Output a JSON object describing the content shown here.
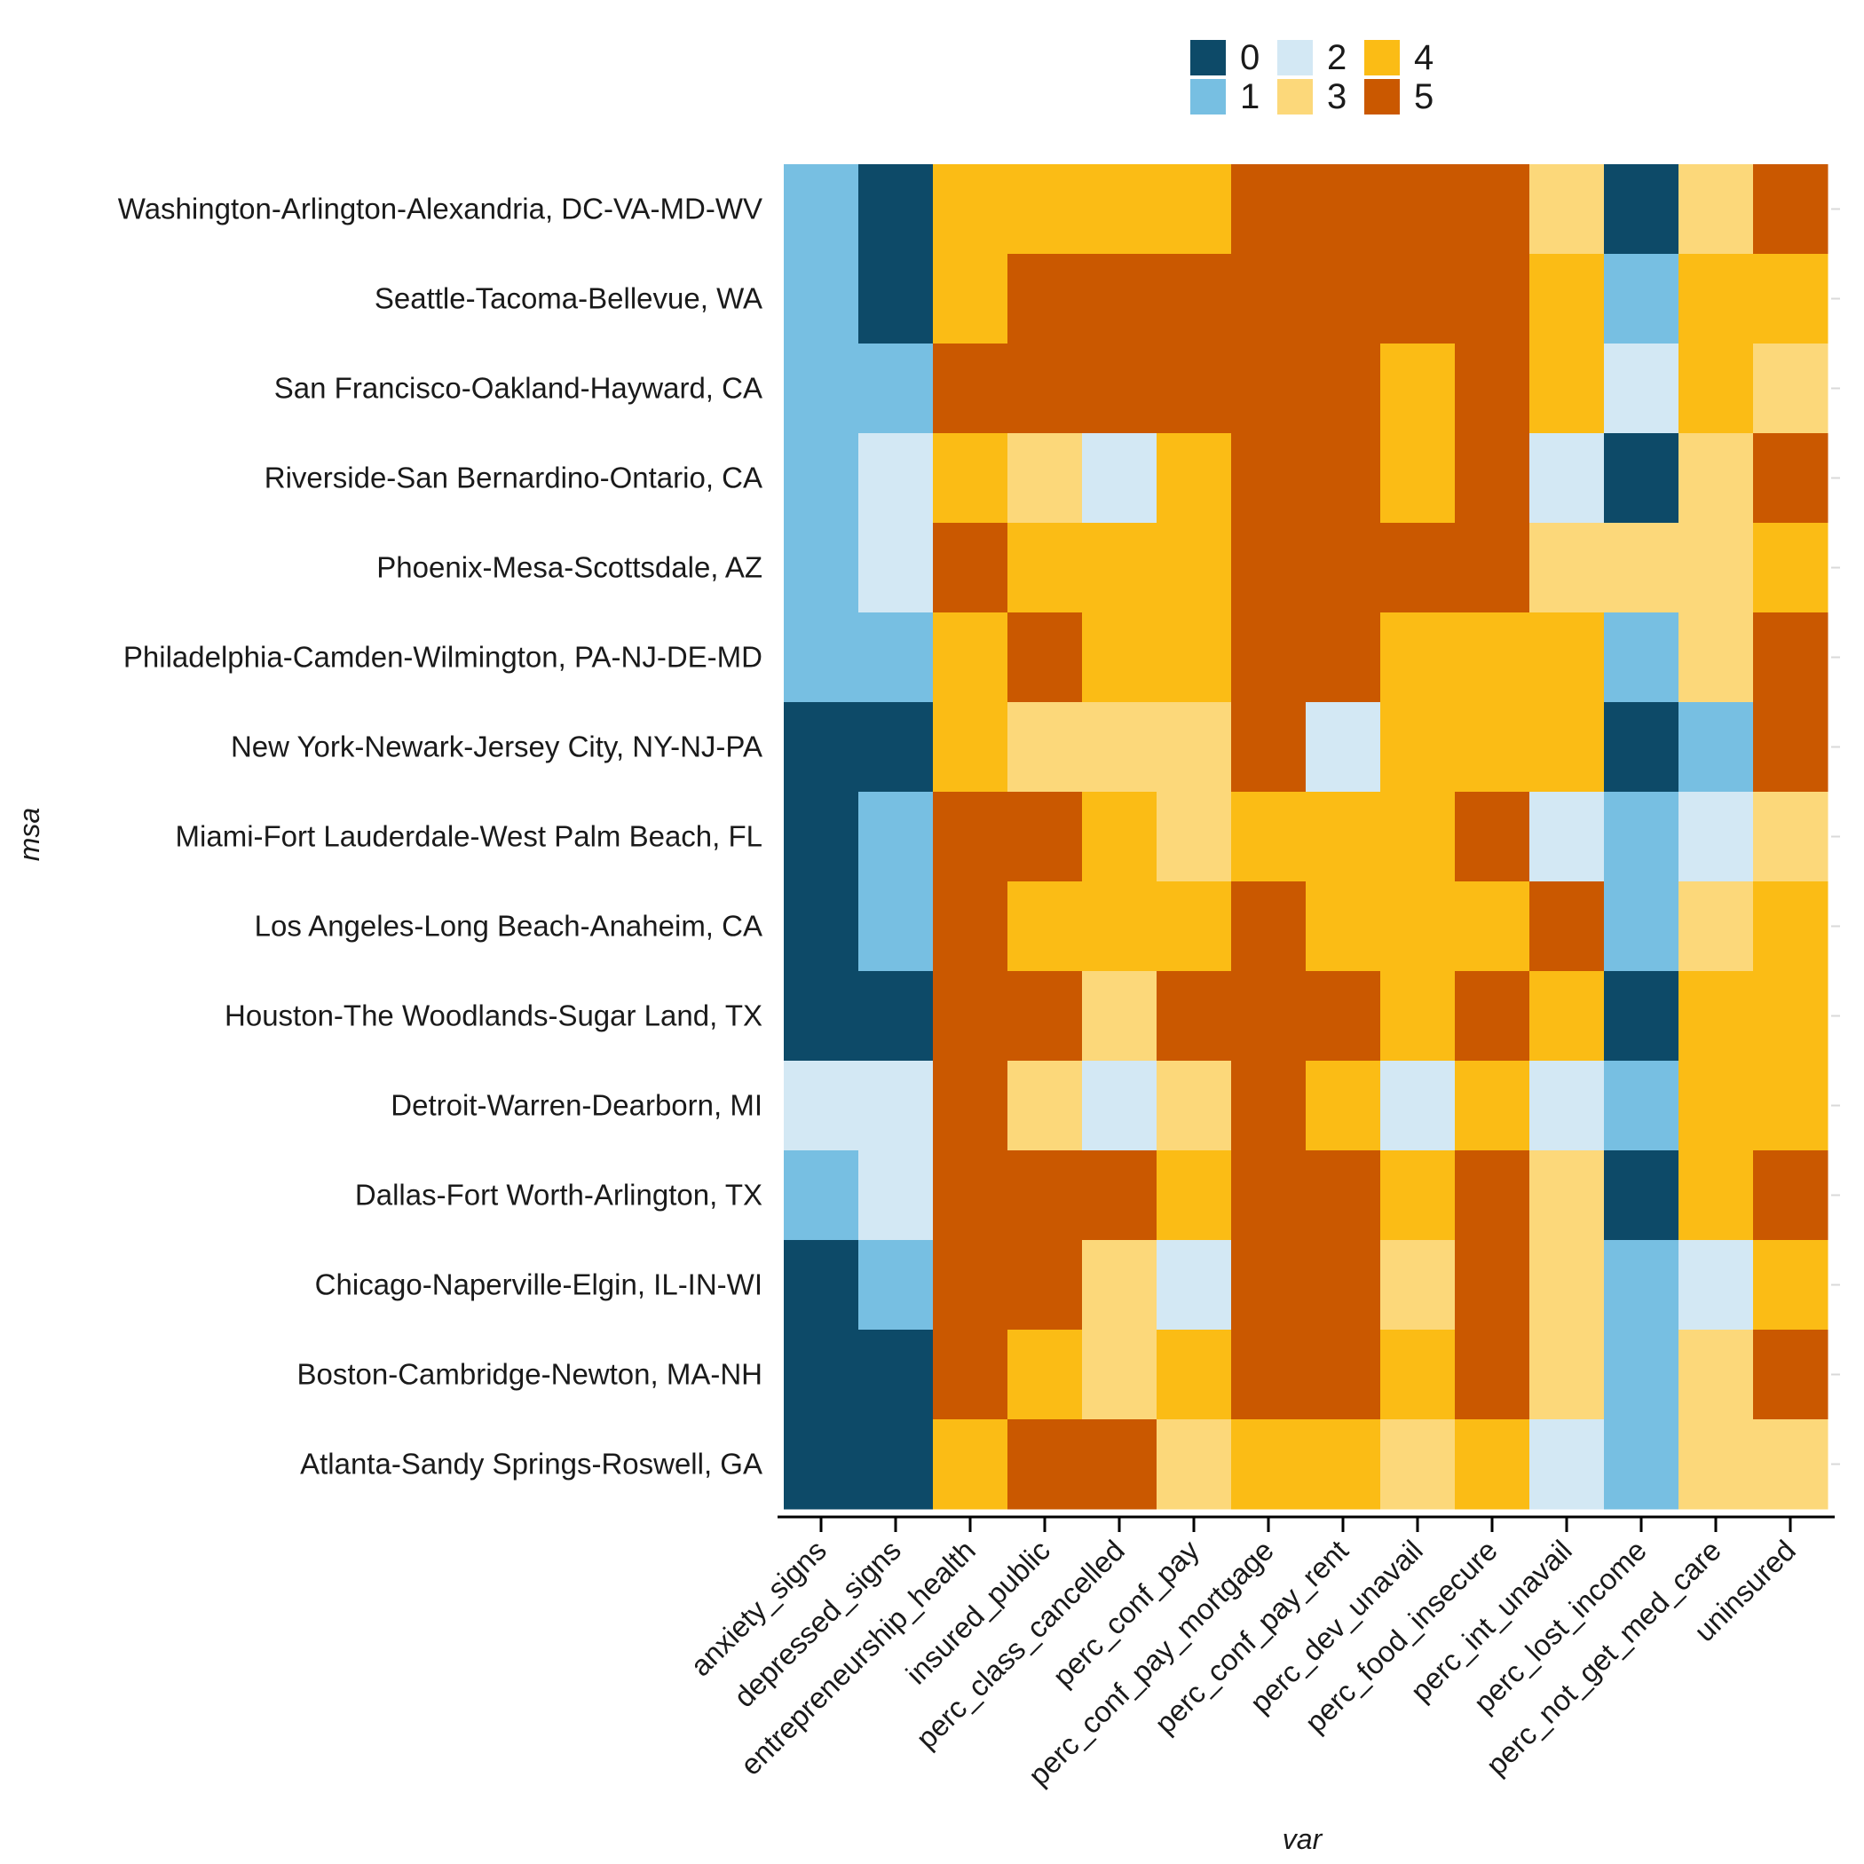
{
  "chart_data": {
    "type": "heatmap",
    "xlabel": "var",
    "ylabel": "msa",
    "x_categories": [
      "anxiety_signs",
      "depressed_signs",
      "entrepreneurship_health",
      "insured_public",
      "perc_class_cancelled",
      "perc_conf_pay",
      "perc_conf_pay_mortgage",
      "perc_conf_pay_rent",
      "perc_dev_unavail",
      "perc_food_insecure",
      "perc_int_unavail",
      "perc_lost_income",
      "perc_not_get_med_care",
      "uninsured"
    ],
    "y_categories": [
      "Washington-Arlington-Alexandria, DC-VA-MD-WV",
      "Seattle-Tacoma-Bellevue, WA",
      "San Francisco-Oakland-Hayward, CA",
      "Riverside-San Bernardino-Ontario, CA",
      "Phoenix-Mesa-Scottsdale, AZ",
      "Philadelphia-Camden-Wilmington, PA-NJ-DE-MD",
      "New York-Newark-Jersey City, NY-NJ-PA",
      "Miami-Fort Lauderdale-West Palm Beach, FL",
      "Los Angeles-Long Beach-Anaheim, CA",
      "Houston-The Woodlands-Sugar Land, TX",
      "Detroit-Warren-Dearborn, MI",
      "Dallas-Fort Worth-Arlington, TX",
      "Chicago-Naperville-Elgin, IL-IN-WI",
      "Boston-Cambridge-Newton, MA-NH",
      "Atlanta-Sandy Springs-Roswell, GA"
    ],
    "values": [
      [
        1,
        0,
        4,
        4,
        4,
        4,
        5,
        5,
        5,
        5,
        3,
        0,
        3,
        5
      ],
      [
        1,
        0,
        4,
        5,
        5,
        5,
        5,
        5,
        5,
        5,
        4,
        1,
        4,
        4
      ],
      [
        1,
        1,
        5,
        5,
        5,
        5,
        5,
        5,
        4,
        5,
        4,
        2,
        4,
        3
      ],
      [
        1,
        2,
        4,
        3,
        2,
        4,
        5,
        5,
        4,
        5,
        2,
        0,
        3,
        5
      ],
      [
        1,
        2,
        5,
        4,
        4,
        4,
        5,
        5,
        5,
        5,
        3,
        3,
        3,
        4
      ],
      [
        1,
        1,
        4,
        5,
        4,
        4,
        5,
        5,
        4,
        4,
        4,
        1,
        3,
        5
      ],
      [
        0,
        0,
        4,
        3,
        3,
        3,
        5,
        2,
        4,
        4,
        4,
        0,
        1,
        5
      ],
      [
        0,
        1,
        5,
        5,
        4,
        3,
        4,
        4,
        4,
        5,
        2,
        1,
        2,
        3
      ],
      [
        0,
        1,
        5,
        4,
        4,
        4,
        5,
        4,
        4,
        4,
        5,
        1,
        3,
        4
      ],
      [
        0,
        0,
        5,
        5,
        3,
        5,
        5,
        5,
        4,
        5,
        4,
        0,
        4,
        4
      ],
      [
        2,
        2,
        5,
        3,
        2,
        3,
        5,
        4,
        2,
        4,
        2,
        1,
        4,
        4
      ],
      [
        1,
        2,
        5,
        5,
        5,
        4,
        5,
        5,
        4,
        5,
        3,
        0,
        4,
        5
      ],
      [
        0,
        1,
        5,
        5,
        3,
        2,
        5,
        5,
        3,
        5,
        3,
        1,
        2,
        4
      ],
      [
        0,
        0,
        5,
        4,
        3,
        4,
        5,
        5,
        4,
        5,
        3,
        1,
        3,
        5
      ],
      [
        0,
        0,
        4,
        5,
        5,
        3,
        4,
        4,
        3,
        4,
        2,
        1,
        3,
        3
      ]
    ],
    "legend": {
      "levels": [
        "0",
        "1",
        "2",
        "3",
        "4",
        "5"
      ],
      "colors": [
        "#0d4a68",
        "#77bfe2",
        "#d3e8f4",
        "#fcd87a",
        "#fbbc15",
        "#ca5800"
      ],
      "placement": "top"
    },
    "grid": false
  }
}
